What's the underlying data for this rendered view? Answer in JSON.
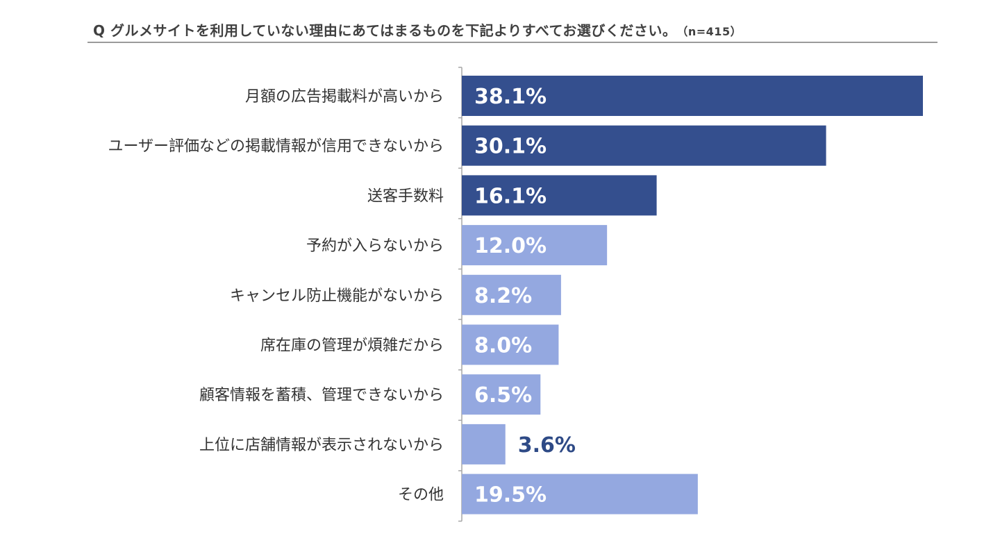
{
  "chart_data": {
    "type": "bar",
    "orientation": "horizontal",
    "title": "Q グルメサイトを利用していない理由にあてはまるものを下記よりすべてお選びください。",
    "sample_size": "（n=415）",
    "categories": [
      "月額の広告掲載料が高いから",
      "ユーザー評価などの掲載情報が信用できないから",
      "送客手数料",
      "予約が入らないから",
      "キャンセル防止機能がないから",
      "席在庫の管理が煩雑だから",
      "顧客情報を蓄積、管理できないから",
      "上位に店舗情報が表示されないから",
      "その他"
    ],
    "values": [
      38.1,
      30.1,
      16.1,
      12.0,
      8.2,
      8.0,
      6.5,
      3.6,
      19.5
    ],
    "value_labels": [
      "38.1%",
      "30.1%",
      "16.1%",
      "12.0%",
      "8.2%",
      "8.0%",
      "6.5%",
      "3.6%",
      "19.5%"
    ],
    "highlight_count": 3,
    "colors": {
      "highlight": "#344F8E",
      "normal": "#94A8E0",
      "label_inside": "#FFFFFF",
      "label_outside": "#2E4A86",
      "axis": "#A6A6A6"
    },
    "xlim": [
      0,
      38.1
    ],
    "grid": false,
    "legend": "none"
  }
}
